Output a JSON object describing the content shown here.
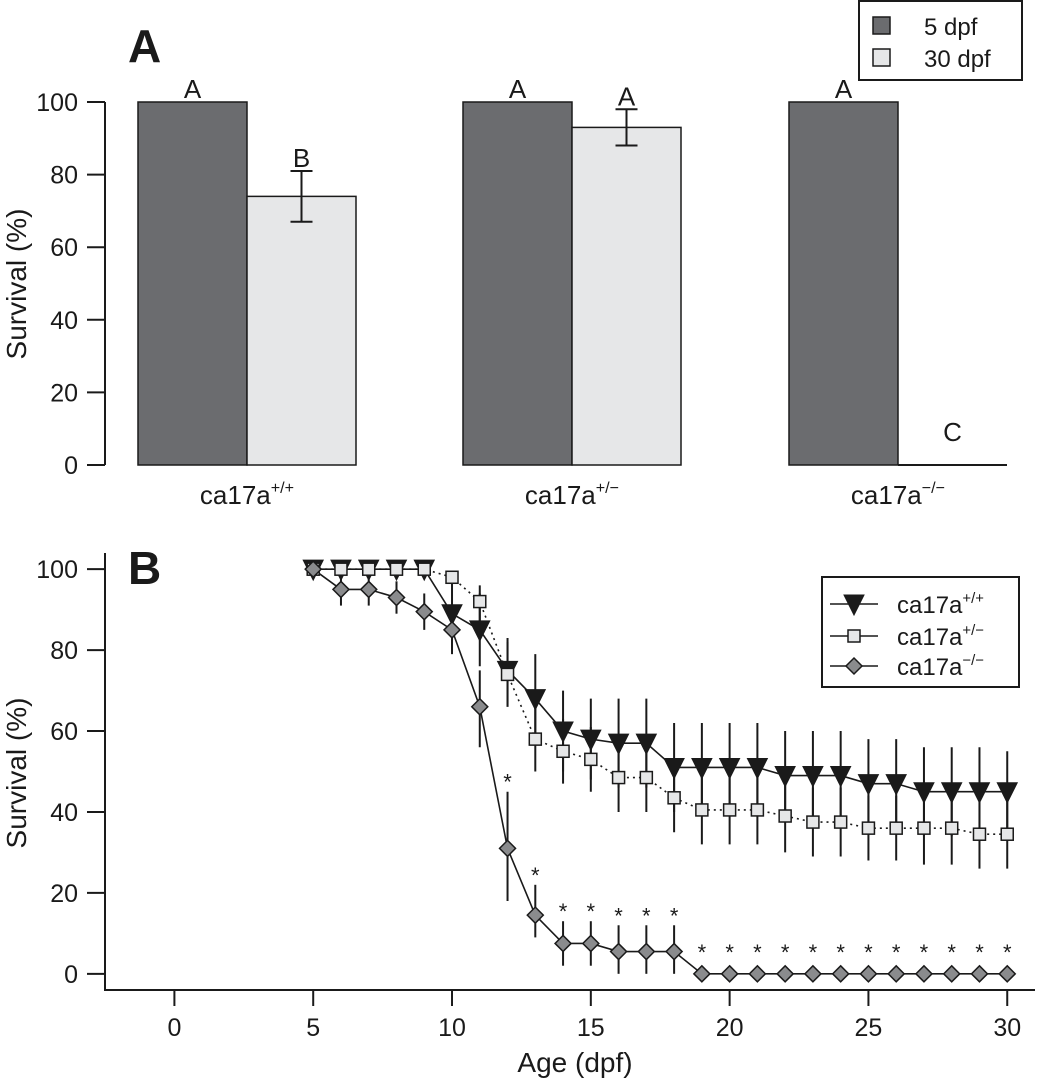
{
  "chart_data": [
    {
      "panel_label": "A",
      "type": "bar",
      "ylabel": "Survival (%)",
      "ylim": [
        0,
        100
      ],
      "yticks": [
        0,
        20,
        40,
        60,
        80,
        100
      ],
      "grid": false,
      "legend_position": "top-right",
      "colors": {
        "5 dpf": "#6b6c6f",
        "30 dpf": "#e6e7e8"
      },
      "groups": [
        {
          "base": "ca17a",
          "sup": "+/+"
        },
        {
          "base": "ca17a",
          "sup": "+/−"
        },
        {
          "base": "ca17a",
          "sup": "−/−"
        }
      ],
      "series": [
        {
          "name": "5 dpf",
          "values": [
            100,
            100,
            100
          ],
          "labels": [
            "A",
            "A",
            "A"
          ]
        },
        {
          "name": "30 dpf",
          "values": [
            74,
            93,
            0
          ],
          "error_low": [
            67,
            88,
            null
          ],
          "error_high": [
            81,
            98,
            null
          ],
          "labels": [
            "B",
            "A",
            "C"
          ]
        }
      ]
    },
    {
      "panel_label": "B",
      "type": "line",
      "xlabel": "Age (dpf)",
      "ylabel": "Survival (%)",
      "xlim": [
        -2.5,
        31
      ],
      "ylim": [
        -4,
        104
      ],
      "xticks": [
        0,
        5,
        10,
        15,
        20,
        25,
        30
      ],
      "yticks": [
        0,
        20,
        40,
        60,
        80,
        100
      ],
      "grid": false,
      "legend_position": "top-right",
      "x": [
        5,
        6,
        7,
        8,
        9,
        10,
        11,
        12,
        13,
        14,
        15,
        16,
        17,
        18,
        19,
        20,
        21,
        22,
        23,
        24,
        25,
        26,
        27,
        28,
        29,
        30
      ],
      "series": [
        {
          "name_base": "ca17a",
          "name_sup": "+/+",
          "marker": "triangle-down",
          "linestyle": "solid",
          "color": "#1a1a1a",
          "values": [
            100,
            100,
            100,
            100,
            100,
            89,
            85,
            75,
            68,
            60,
            58,
            57,
            57,
            51,
            51,
            51,
            51,
            49,
            49,
            49,
            47,
            47,
            45,
            45,
            45,
            45
          ],
          "error_low": [
            null,
            null,
            null,
            null,
            null,
            80,
            76,
            66,
            58,
            50,
            48,
            46,
            46,
            40,
            40,
            40,
            40,
            38,
            38,
            38,
            36,
            36,
            34,
            34,
            34,
            35
          ],
          "error_high": [
            null,
            null,
            null,
            null,
            null,
            98,
            94,
            83,
            79,
            70,
            68,
            68,
            68,
            62,
            62,
            62,
            62,
            60,
            60,
            60,
            58,
            58,
            56,
            56,
            56,
            55
          ]
        },
        {
          "name_base": "ca17a",
          "name_sup": "+/−",
          "marker": "square",
          "linestyle": "dotted",
          "color": "#e6e7e8",
          "values": [
            100,
            100,
            100,
            100,
            100,
            98,
            92,
            74,
            58,
            55,
            53,
            48.5,
            48.5,
            43.5,
            40.5,
            40.5,
            40.5,
            39,
            37.5,
            37.5,
            36,
            36,
            36,
            36,
            34.5,
            34.5
          ],
          "error_low": [
            null,
            null,
            null,
            null,
            null,
            null,
            84,
            66,
            50,
            47,
            45,
            40,
            40,
            35,
            32,
            32,
            32,
            30,
            29,
            29,
            28,
            28,
            27,
            27,
            26,
            26
          ],
          "error_high": [
            null,
            null,
            null,
            null,
            null,
            null,
            96,
            82,
            66,
            63,
            61,
            57,
            57,
            52,
            49,
            49,
            49,
            48,
            46,
            46,
            44,
            44,
            45,
            45,
            43,
            43
          ]
        },
        {
          "name_base": "ca17a",
          "name_sup": "−/−",
          "marker": "diamond",
          "linestyle": "solid",
          "color": "#8a8b8d",
          "values": [
            100,
            95,
            95,
            93,
            89.5,
            85,
            66,
            31,
            14.5,
            7.5,
            7.5,
            5.5,
            5.5,
            5.5,
            0,
            0,
            0,
            0,
            0,
            0,
            0,
            0,
            0,
            0,
            0,
            0
          ],
          "error_low": [
            null,
            91,
            91,
            89,
            85,
            79,
            56,
            18,
            9,
            2,
            2,
            0,
            0,
            0,
            null,
            null,
            null,
            null,
            null,
            null,
            null,
            null,
            null,
            null,
            null,
            null
          ],
          "error_high": [
            null,
            99,
            99,
            97,
            94,
            91,
            75,
            45,
            22,
            13,
            13,
            12,
            12,
            12,
            null,
            null,
            null,
            null,
            null,
            null,
            null,
            null,
            null,
            null,
            null,
            null
          ],
          "significance": [
            false,
            false,
            false,
            false,
            false,
            false,
            false,
            true,
            true,
            true,
            true,
            true,
            true,
            true,
            true,
            true,
            true,
            true,
            true,
            true,
            true,
            true,
            true,
            true,
            true,
            true
          ],
          "significance_symbol": "*"
        }
      ]
    }
  ]
}
